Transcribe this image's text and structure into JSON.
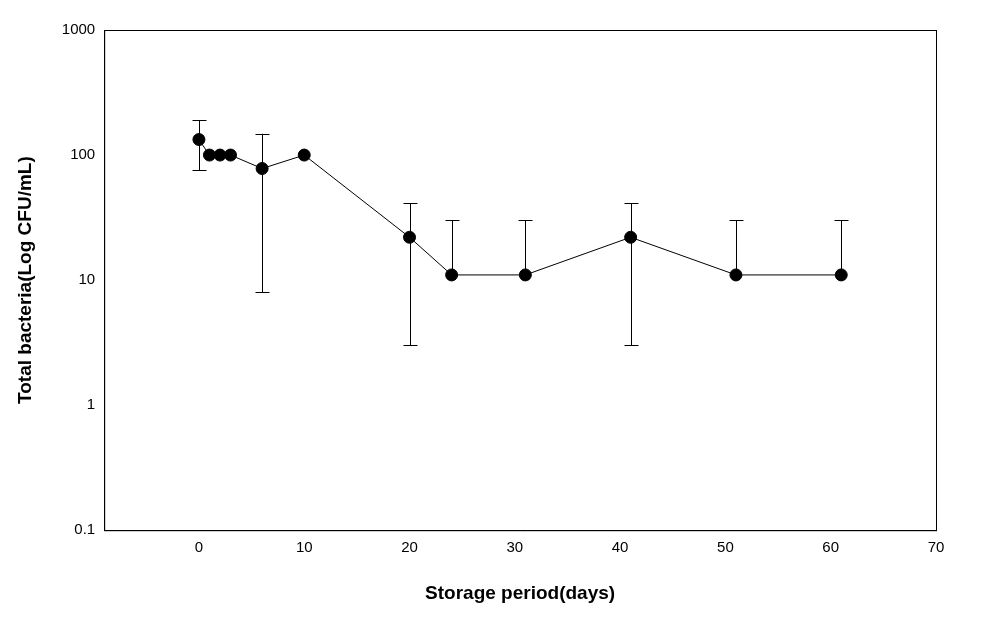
{
  "chart_data": {
    "type": "line",
    "x_label": "Storage period(days)",
    "y_label": "Total bacteria(Log CFU/mL)",
    "x": [
      0,
      1,
      2,
      3,
      6,
      10,
      20,
      24,
      31,
      41,
      51,
      61
    ],
    "values": [
      133,
      100,
      100,
      100,
      78,
      100,
      22,
      11,
      11,
      22,
      11,
      11
    ],
    "errors": [
      57,
      0,
      0,
      0,
      70,
      0,
      19,
      19,
      19,
      19,
      19,
      19
    ],
    "color": "#000000",
    "marker": "circle",
    "line_style": "solid",
    "xlim": [
      -9,
      70
    ],
    "xticks": [
      0,
      10,
      20,
      30,
      40,
      50,
      60,
      70
    ],
    "ylim": [
      0.1,
      1000
    ],
    "yticks": [
      0.1,
      1,
      10,
      100,
      1000
    ],
    "log": "y",
    "grid": false
  }
}
